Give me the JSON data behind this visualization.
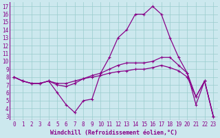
{
  "xlabel": "Windchill (Refroidissement éolien,°C)",
  "xlim": [
    -0.5,
    23.5
  ],
  "ylim": [
    2.5,
    17.5
  ],
  "xticks": [
    0,
    1,
    2,
    3,
    4,
    5,
    6,
    7,
    8,
    9,
    10,
    11,
    12,
    13,
    14,
    15,
    16,
    17,
    18,
    19,
    20,
    21,
    22,
    23
  ],
  "yticks": [
    3,
    4,
    5,
    6,
    7,
    8,
    9,
    10,
    11,
    12,
    13,
    14,
    15,
    16,
    17
  ],
  "background_color": "#cce8ee",
  "line_color": "#880088",
  "grid_color": "#99cccc",
  "line1_y": [
    8.0,
    7.5,
    7.2,
    7.2,
    7.5,
    6.0,
    4.5,
    3.5,
    5.0,
    5.2,
    8.5,
    10.5,
    13.0,
    14.0,
    16.0,
    16.0,
    17.0,
    16.0,
    13.0,
    10.5,
    8.5,
    4.5,
    7.5,
    3.0
  ],
  "line2_y": [
    8.0,
    7.5,
    7.2,
    7.2,
    7.5,
    7.0,
    6.8,
    7.2,
    7.8,
    8.2,
    8.5,
    9.0,
    9.5,
    9.8,
    9.8,
    9.8,
    10.0,
    10.5,
    10.5,
    9.5,
    8.5,
    5.5,
    7.5,
    3.0
  ],
  "line3_y": [
    8.0,
    7.5,
    7.2,
    7.2,
    7.5,
    7.2,
    7.2,
    7.5,
    7.8,
    8.0,
    8.2,
    8.5,
    8.7,
    8.8,
    9.0,
    9.0,
    9.2,
    9.5,
    9.2,
    8.8,
    8.0,
    5.5,
    7.5,
    3.0
  ],
  "tickfont_size": 5.5,
  "xlabel_fontsize": 6.0
}
